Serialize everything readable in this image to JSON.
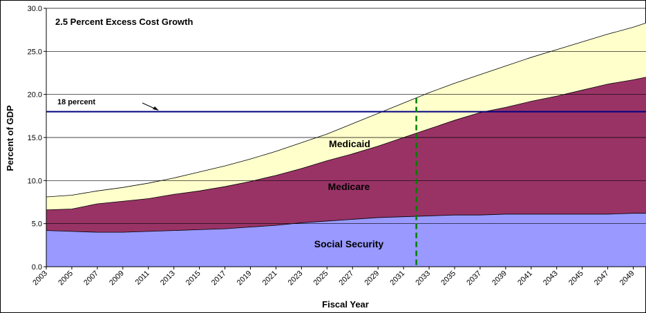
{
  "chart_data": {
    "type": "area",
    "title": "2.5 Percent Excess Cost Growth",
    "xlabel": "Fiscal Year",
    "ylabel": "Percent of GDP",
    "ylim": [
      0,
      30
    ],
    "yticks": [
      "0.0",
      "5.0",
      "10.0",
      "15.0",
      "20.0",
      "25.0",
      "30.0"
    ],
    "x": [
      2003,
      2005,
      2007,
      2009,
      2011,
      2013,
      2015,
      2017,
      2019,
      2021,
      2023,
      2025,
      2027,
      2029,
      2031,
      2033,
      2035,
      2037,
      2039,
      2041,
      2043,
      2045,
      2047,
      2049,
      2050
    ],
    "xticks": [
      "2003",
      "2005",
      "2007",
      "2009",
      "2011",
      "2013",
      "2015",
      "2017",
      "2019",
      "2021",
      "2023",
      "2025",
      "2027",
      "2029",
      "2031",
      "2033",
      "2035",
      "2037",
      "2039",
      "2041",
      "2043",
      "2045",
      "2047",
      "2049"
    ],
    "stacked": true,
    "series": [
      {
        "name": "Social Security",
        "color": "#9999ff",
        "cumulative": [
          4.2,
          4.1,
          4.0,
          4.0,
          4.1,
          4.2,
          4.3,
          4.4,
          4.6,
          4.8,
          5.1,
          5.3,
          5.5,
          5.7,
          5.8,
          5.9,
          6.0,
          6.0,
          6.1,
          6.1,
          6.1,
          6.1,
          6.1,
          6.2,
          6.2
        ]
      },
      {
        "name": "Medicare",
        "color": "#993366",
        "cumulative": [
          6.6,
          6.7,
          7.3,
          7.6,
          7.9,
          8.4,
          8.8,
          9.3,
          9.9,
          10.6,
          11.4,
          12.3,
          13.1,
          14.0,
          15.0,
          16.0,
          17.0,
          17.9,
          18.5,
          19.2,
          19.8,
          20.5,
          21.2,
          21.7,
          22.0
        ]
      },
      {
        "name": "Medicaid",
        "color": "#ffffcc",
        "cumulative": [
          8.1,
          8.3,
          8.8,
          9.2,
          9.7,
          10.3,
          11.0,
          11.7,
          12.5,
          13.4,
          14.4,
          15.4,
          16.6,
          17.8,
          19.0,
          20.2,
          21.3,
          22.3,
          23.3,
          24.3,
          25.2,
          26.1,
          27.0,
          27.8,
          28.3
        ]
      }
    ],
    "reference_line": {
      "label": "18 percent",
      "value": 18,
      "color": "#000080"
    },
    "marker_line": {
      "year": 2032,
      "color": "#008000",
      "style": "dashed"
    },
    "area_labels": [
      "Medicaid",
      "Medicare",
      "Social Security"
    ],
    "grid": true,
    "legend": "none"
  }
}
